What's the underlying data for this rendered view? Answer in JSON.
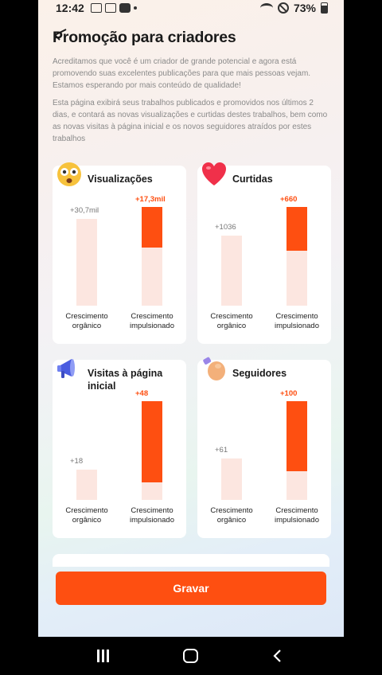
{
  "status_bar": {
    "time": "12:42",
    "battery": "73%"
  },
  "page": {
    "title": "Promoção para criadores",
    "paragraph1": "Acreditamos que você é um criador de grande potencial e agora está promovendo suas excelentes publicações para que mais pessoas vejam. Estamos esperando por mais conteúdo de qualidade!",
    "paragraph2": "Esta página exibirá seus trabalhos publicados e promovidos nos últimos 2 dias, e contará as novas visualizações e curtidas destes trabalhos, bem como as novas visitas à página inicial e os novos seguidores atraídos por estes trabalhos"
  },
  "cards": [
    {
      "title": "Visualizações",
      "icon": "shocked-face-icon",
      "organic_label": "+30,7mil",
      "boosted_label": "+17,3mil",
      "organic_level": 0.88,
      "boosted_level": 1.0,
      "boosted_fill": 0.41,
      "organic_axis": "Crescimento orgânico",
      "boosted_axis": "Crescimento impulsionado"
    },
    {
      "title": "Curtidas",
      "icon": "heart-icon",
      "organic_label": "+1036",
      "boosted_label": "+660",
      "organic_level": 0.71,
      "boosted_level": 1.0,
      "boosted_fill": 0.44,
      "organic_axis": "Crescimento orgânico",
      "boosted_axis": "Crescimento impulsionado"
    },
    {
      "title": "Visitas à página inicial",
      "icon": "megaphone-icon",
      "organic_label": "+18",
      "boosted_label": "+48",
      "organic_level": 0.31,
      "boosted_level": 1.0,
      "boosted_fill": 0.82,
      "organic_axis": "Crescimento orgânico",
      "boosted_axis": "Crescimento impulsionado"
    },
    {
      "title": "Seguidores",
      "icon": "waving-hand-icon",
      "organic_label": "+61",
      "boosted_label": "+100",
      "organic_level": 0.42,
      "boosted_level": 1.0,
      "boosted_fill": 0.71,
      "organic_axis": "Crescimento orgânico",
      "boosted_axis": "Crescimento impulsionado"
    }
  ],
  "actions": {
    "record_label": "Gravar"
  },
  "colors": {
    "accent": "#fe4f11",
    "bar_background": "#fce6e0"
  }
}
